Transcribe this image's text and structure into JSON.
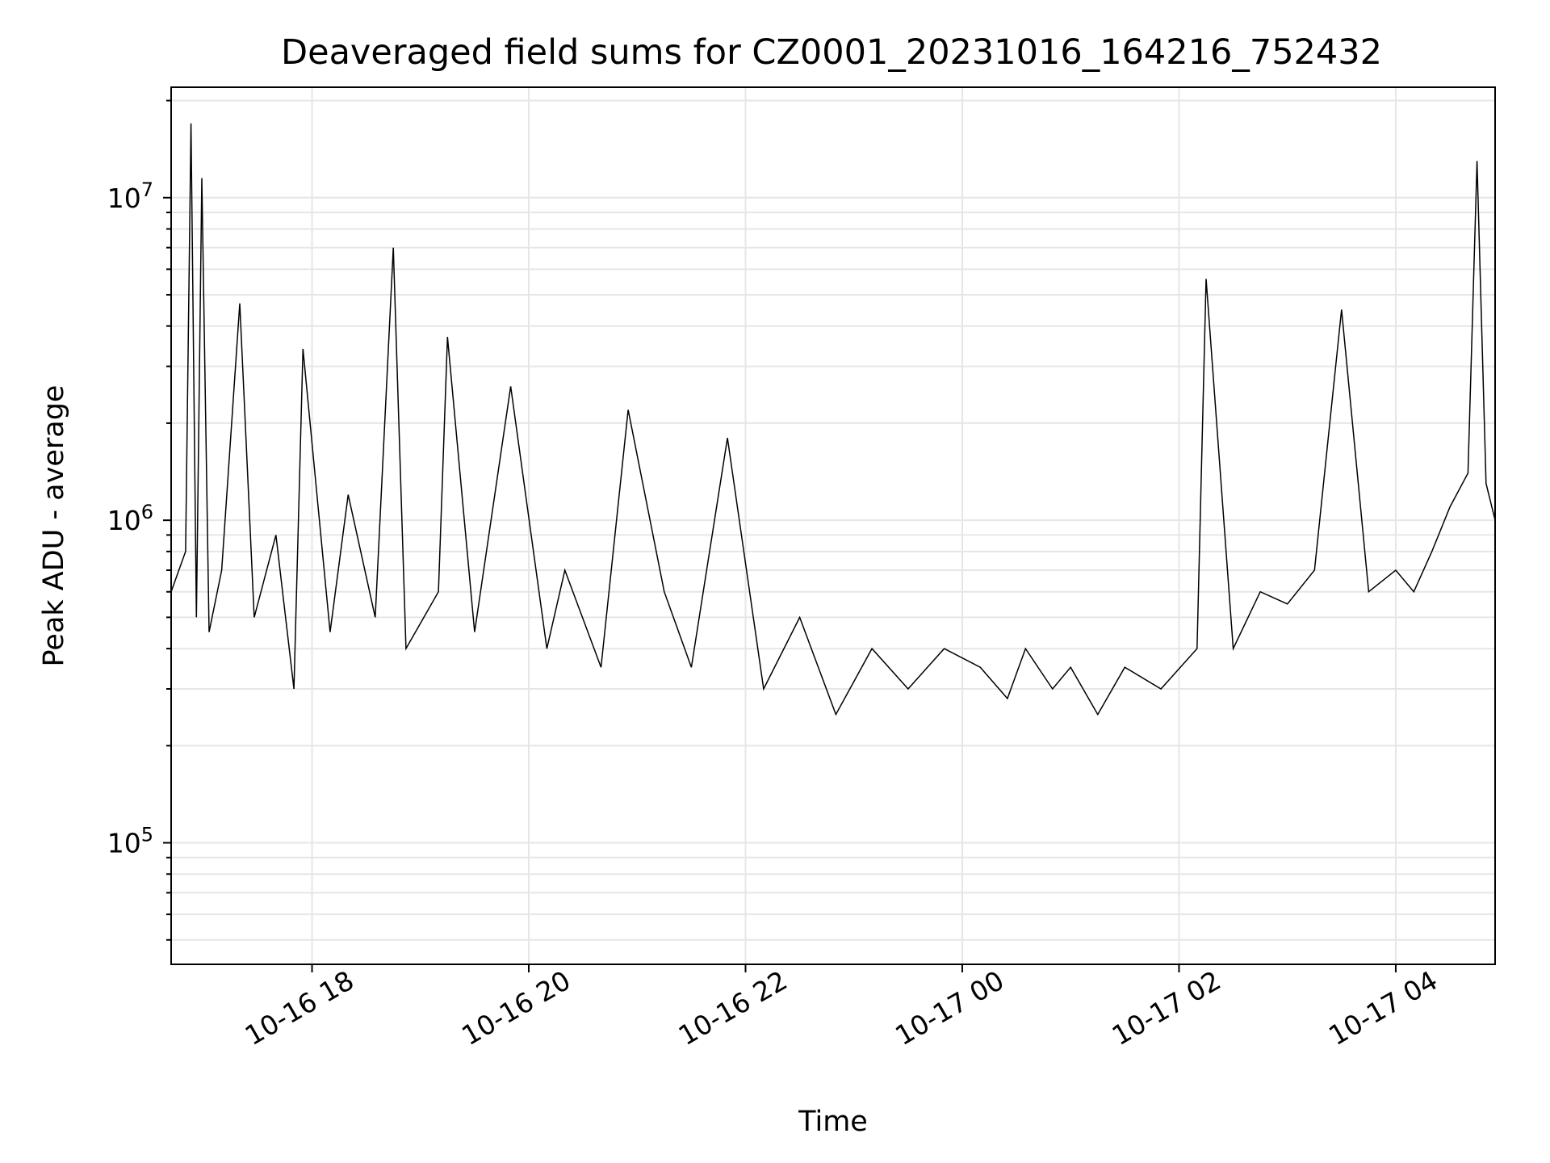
{
  "chart_data": {
    "type": "line",
    "title": "Deaveraged field sums for CZ0001_20231016_164216_752432",
    "xlabel": "Time",
    "ylabel": "Peak ADU - average",
    "yscale": "log",
    "xlim": [
      "2023-10-16 16:42",
      "2023-10-17 04:55"
    ],
    "ylim": [
      42000,
      22000000
    ],
    "grid": true,
    "line_color": "#000000",
    "x_ticks": [
      {
        "value": "2023-10-16 18:00",
        "label": "10-16 18"
      },
      {
        "value": "2023-10-16 20:00",
        "label": "10-16 20"
      },
      {
        "value": "2023-10-16 22:00",
        "label": "10-16 22"
      },
      {
        "value": "2023-10-17 00:00",
        "label": "10-17 00"
      },
      {
        "value": "2023-10-17 02:00",
        "label": "10-17 02"
      },
      {
        "value": "2023-10-17 04:00",
        "label": "10-17 04"
      }
    ],
    "y_ticks": [
      {
        "value": 100000,
        "base": "10",
        "exp": "5"
      },
      {
        "value": 1000000,
        "base": "10",
        "exp": "6"
      },
      {
        "value": 10000000,
        "base": "10",
        "exp": "7"
      }
    ],
    "series": [
      {
        "x": [
          "2023-10-16 16:42",
          "2023-10-16 16:50",
          "2023-10-16 16:53",
          "2023-10-16 16:56",
          "2023-10-16 16:59",
          "2023-10-16 17:03",
          "2023-10-16 17:10",
          "2023-10-16 17:20",
          "2023-10-16 17:28",
          "2023-10-16 17:40",
          "2023-10-16 17:50",
          "2023-10-16 17:55",
          "2023-10-16 18:10",
          "2023-10-16 18:20",
          "2023-10-16 18:35",
          "2023-10-16 18:45",
          "2023-10-16 18:52",
          "2023-10-16 19:10",
          "2023-10-16 19:15",
          "2023-10-16 19:30",
          "2023-10-16 19:50",
          "2023-10-16 20:10",
          "2023-10-16 20:20",
          "2023-10-16 20:40",
          "2023-10-16 20:55",
          "2023-10-16 21:15",
          "2023-10-16 21:30",
          "2023-10-16 21:50",
          "2023-10-16 22:10",
          "2023-10-16 22:30",
          "2023-10-16 22:50",
          "2023-10-16 23:10",
          "2023-10-16 23:30",
          "2023-10-16 23:50",
          "2023-10-17 00:10",
          "2023-10-17 00:25",
          "2023-10-17 00:35",
          "2023-10-17 00:50",
          "2023-10-17 01:00",
          "2023-10-17 01:15",
          "2023-10-17 01:30",
          "2023-10-17 01:50",
          "2023-10-17 02:10",
          "2023-10-17 02:15",
          "2023-10-17 02:30",
          "2023-10-17 02:45",
          "2023-10-17 03:00",
          "2023-10-17 03:15",
          "2023-10-17 03:30",
          "2023-10-17 03:45",
          "2023-10-17 04:00",
          "2023-10-17 04:10",
          "2023-10-17 04:20",
          "2023-10-17 04:30",
          "2023-10-17 04:40",
          "2023-10-17 04:45",
          "2023-10-17 04:50",
          "2023-10-17 04:55"
        ],
        "y": [
          600000,
          800000,
          17000000,
          500000,
          11500000,
          450000,
          700000,
          4700000,
          500000,
          900000,
          300000,
          3400000,
          450000,
          1200000,
          500000,
          7000000,
          400000,
          600000,
          3700000,
          450000,
          2600000,
          400000,
          700000,
          350000,
          2200000,
          600000,
          350000,
          1800000,
          300000,
          500000,
          250000,
          400000,
          300000,
          400000,
          350000,
          280000,
          400000,
          300000,
          350000,
          250000,
          350000,
          300000,
          400000,
          5600000,
          400000,
          600000,
          550000,
          700000,
          4500000,
          600000,
          700000,
          600000,
          800000,
          1100000,
          1400000,
          13000000,
          1300000,
          1000000
        ]
      }
    ]
  }
}
